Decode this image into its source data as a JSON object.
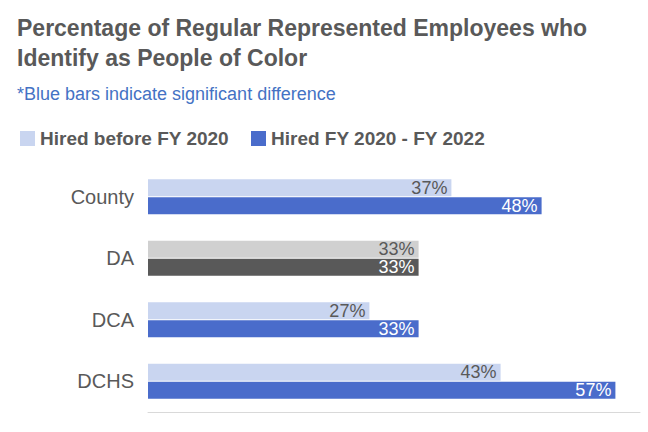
{
  "chart_data": {
    "type": "bar",
    "orientation": "horizontal",
    "title": "Percentage of Regular Represented Employees who Identify as People of Color",
    "subtitle": "*Blue bars indicate significant difference",
    "categories": [
      "County",
      "DA",
      "DCA",
      "DCHS"
    ],
    "series": [
      {
        "name": "Hired before FY 2020",
        "color": "#c9d5f0",
        "colors": [
          "#c9d5f0",
          "#d0d0d0",
          "#c9d5f0",
          "#c9d5f0"
        ],
        "values": [
          37,
          33,
          27,
          43
        ],
        "value_labels": [
          "37%",
          "33%",
          "27%",
          "43%"
        ]
      },
      {
        "name": "Hired FY 2020 - FY 2022",
        "color": "#4a6ccb",
        "colors": [
          "#4a6ccb",
          "#595959",
          "#4a6ccb",
          "#4a6ccb"
        ],
        "values": [
          48,
          33,
          33,
          57
        ],
        "value_labels": [
          "48%",
          "33%",
          "33%",
          "57%"
        ]
      }
    ],
    "xlim": [
      0,
      60
    ],
    "legend": "top-left",
    "data_labels": true,
    "tick_labels": "y",
    "grid": false
  }
}
